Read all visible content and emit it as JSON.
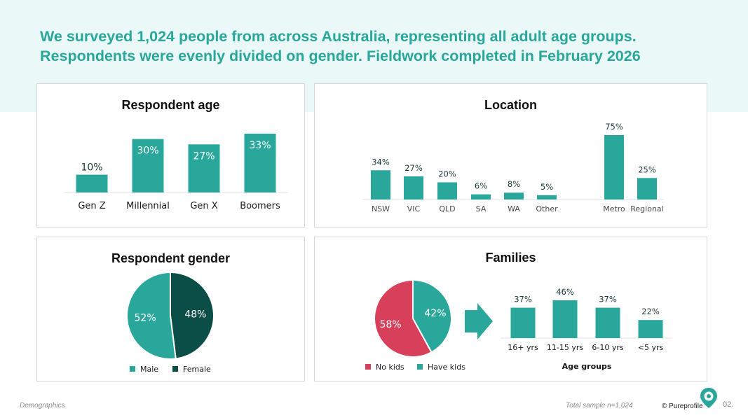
{
  "headline": {
    "line1": "We surveyed 1,024 people from across Australia, representing all adult age groups.",
    "line2": "Respondents were evenly divided on gender. Fieldwork completed in February 2026"
  },
  "colors": {
    "teal": "#2aa79b",
    "dark_teal": "#0b4d47",
    "red": "#d83f5a",
    "band": "#eaf8f7",
    "headline": "#2aa79b"
  },
  "chart_data": [
    {
      "type": "bar",
      "title": "Respondent age",
      "categories": [
        "Gen Z",
        "Millennial",
        "Gen X",
        "Boomers"
      ],
      "values": [
        10,
        30,
        27,
        33
      ],
      "value_labels": [
        "10%",
        "30%",
        "27%",
        "33%"
      ],
      "ylim": [
        0,
        33
      ]
    },
    {
      "type": "bar",
      "title": "Location",
      "categories": [
        "NSW",
        "VIC",
        "QLD",
        "SA",
        "WA",
        "Other",
        "Metro",
        "Regional"
      ],
      "values": [
        34,
        27,
        20,
        6,
        8,
        5,
        75,
        25
      ],
      "value_labels": [
        "34%",
        "27%",
        "20%",
        "6%",
        "8%",
        "5%",
        "75%",
        "25%"
      ],
      "ylim": [
        0,
        75
      ]
    },
    {
      "type": "pie",
      "title": "Respondent gender",
      "labels": [
        "Male",
        "Female"
      ],
      "values": [
        52,
        48
      ],
      "value_labels": [
        "52%",
        "48%"
      ]
    },
    {
      "type": "pie",
      "title": "Families",
      "labels": [
        "No kids",
        "Have kids"
      ],
      "values": [
        58,
        42
      ],
      "value_labels": [
        "58%",
        "42%"
      ]
    },
    {
      "type": "bar",
      "title": "",
      "xlabel": "Age groups",
      "categories": [
        "16+ yrs",
        "11-15 yrs",
        "6-10 yrs",
        "<5 yrs"
      ],
      "values": [
        37,
        46,
        37,
        22
      ],
      "value_labels": [
        "37%",
        "46%",
        "37%",
        "22%"
      ],
      "ylim": [
        0,
        46
      ]
    }
  ],
  "footer": {
    "section": "Demographics",
    "sample": "Total sample n=1,024",
    "brand": "© Pureprofile",
    "page": "02."
  }
}
